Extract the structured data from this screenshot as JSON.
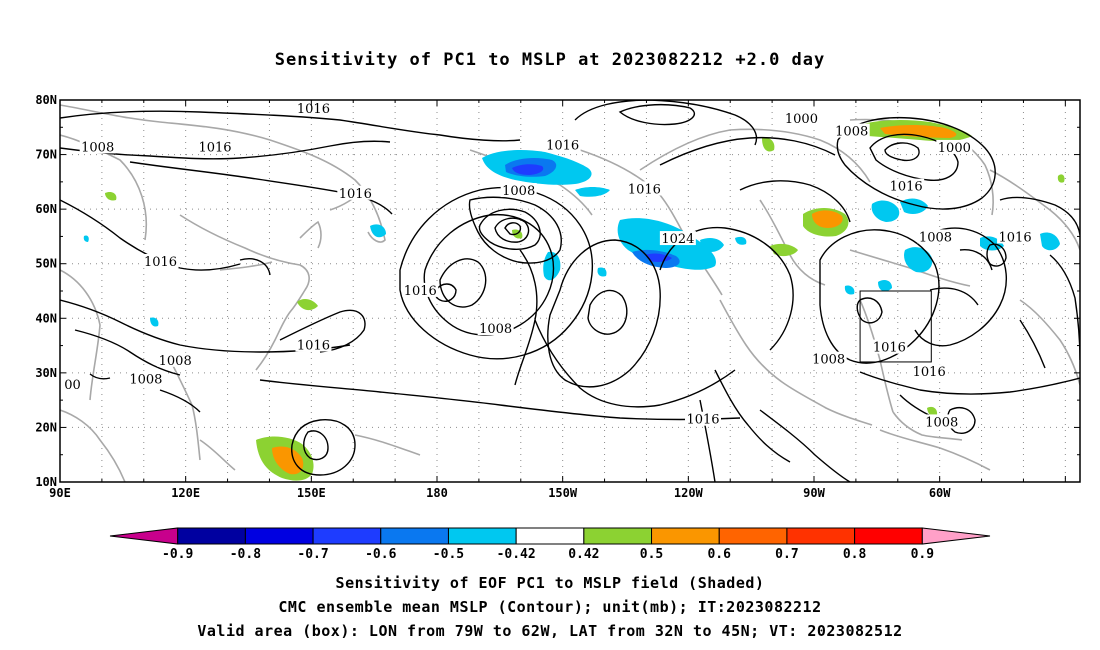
{
  "title": "Sensitivity of PC1 to MSLP at 2023082212 +2.0 day",
  "lat_labels": [
    "80N",
    "70N",
    "60N",
    "50N",
    "40N",
    "30N",
    "20N",
    "10N"
  ],
  "lon_labels": [
    "90E",
    "120E",
    "150E",
    "180",
    "150W",
    "120W",
    "90W",
    "60W"
  ],
  "contour_labels": [
    {
      "text": "1016",
      "lon": 150.5,
      "lat": 78.5
    },
    {
      "text": "1008",
      "lon": 99,
      "lat": 71.5
    },
    {
      "text": "1016",
      "lon": 127,
      "lat": 71.5
    },
    {
      "text": "1016",
      "lon": 210,
      "lat": 71.8
    },
    {
      "text": "1016",
      "lon": 160.5,
      "lat": 63
    },
    {
      "text": "1008",
      "lon": 199.5,
      "lat": 63.5
    },
    {
      "text": "1016",
      "lon": 229.5,
      "lat": 63.8
    },
    {
      "text": "1000",
      "lon": 267,
      "lat": 76.7
    },
    {
      "text": "1008",
      "lon": 279,
      "lat": 74.4
    },
    {
      "text": "1000",
      "lon": 303.5,
      "lat": 71.4
    },
    {
      "text": "1016",
      "lon": 292,
      "lat": 64.3
    },
    {
      "text": "1024",
      "lon": 237.5,
      "lat": 54.7
    },
    {
      "text": "1008",
      "lon": 299,
      "lat": 55
    },
    {
      "text": "1016",
      "lon": 318,
      "lat": 55
    },
    {
      "text": "1016",
      "lon": 114,
      "lat": 50.5
    },
    {
      "text": "1016",
      "lon": 176,
      "lat": 45.2
    },
    {
      "text": "1008",
      "lon": 194,
      "lat": 38.2
    },
    {
      "text": "1016",
      "lon": 150.5,
      "lat": 35.2
    },
    {
      "text": "1008",
      "lon": 117.5,
      "lat": 32.4
    },
    {
      "text": "1008",
      "lon": 110.5,
      "lat": 29
    },
    {
      "text": "1008",
      "lon": 273.5,
      "lat": 32.6
    },
    {
      "text": "1016",
      "lon": 288,
      "lat": 34.8
    },
    {
      "text": "1016",
      "lon": 297.5,
      "lat": 30.3
    },
    {
      "text": "1016",
      "lon": 243.5,
      "lat": 21.6
    },
    {
      "text": "1008",
      "lon": 300.5,
      "lat": 21.1
    },
    {
      "text": "00",
      "lon": 93,
      "lat": 28
    }
  ],
  "colorbar": {
    "labels": [
      "-0.9",
      "-0.8",
      "-0.7",
      "-0.6",
      "-0.5",
      "-0.42",
      "0.42",
      "0.5",
      "0.6",
      "0.7",
      "0.8",
      "0.9"
    ],
    "colors": [
      "#c8008c",
      "#0000a0",
      "#0000e1",
      "#1e3cff",
      "#0a78f0",
      "#00c8f0",
      "#ffffff",
      "#8cd232",
      "#fa9600",
      "#ff6400",
      "#ff3200",
      "#ff0000",
      "#ffa0c8"
    ]
  },
  "valid_box": {
    "lon_min": -79,
    "lon_max": -62,
    "lat_min": 32,
    "lat_max": 45
  },
  "captions": [
    "Sensitivity of EOF PC1 to MSLP field (Shaded)",
    "CMC ensemble mean MSLP (Contour); unit(mb); IT:2023082212",
    "Valid area (box): LON from 79W to 62W, LAT from 32N to 45N; VT: 2023082512"
  ]
}
